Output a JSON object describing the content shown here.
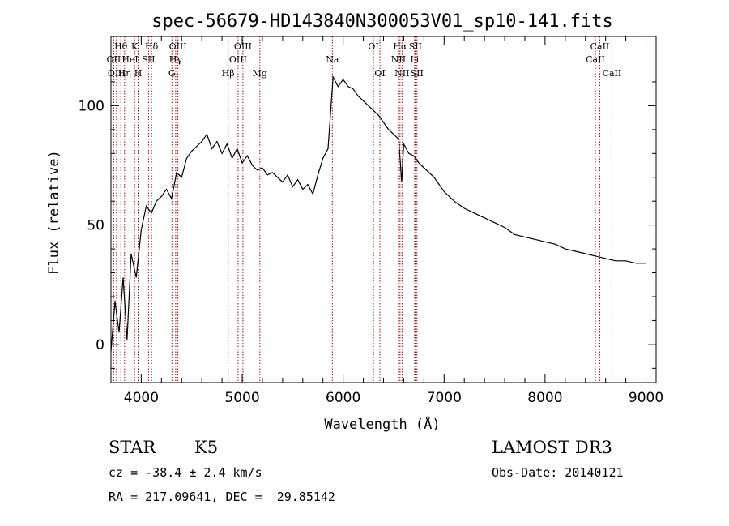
{
  "chart_data": {
    "type": "line",
    "title": "spec-56679-HD143840N300053V01_sp10-141.fits",
    "xlabel": "Wavelength (Å)",
    "ylabel": "Flux (relative)",
    "xlim": [
      3700,
      9100
    ],
    "ylim": [
      -16,
      129
    ],
    "xticks": [
      4000,
      5000,
      6000,
      7000,
      8000,
      9000
    ],
    "yticks": [
      0,
      50,
      100
    ],
    "grid": false,
    "line_color": "#000000",
    "marker_color": "#b00000",
    "series": [
      {
        "x": [
          3700,
          3740,
          3780,
          3820,
          3860,
          3900,
          3950,
          4000,
          4050,
          4100,
          4150,
          4200,
          4250,
          4300,
          4350,
          4400,
          4450,
          4500,
          4550,
          4600,
          4650,
          4700,
          4750,
          4800,
          4850,
          4900,
          4950,
          5000,
          5050,
          5100,
          5150,
          5200,
          5250,
          5300,
          5350,
          5400,
          5450,
          5500,
          5550,
          5600,
          5650,
          5700,
          5750,
          5800,
          5850,
          5900,
          5950,
          6000,
          6050,
          6100,
          6150,
          6200,
          6250,
          6300,
          6350,
          6400,
          6450,
          6500,
          6550,
          6580,
          6600,
          6650,
          6700,
          6750,
          6800,
          6900,
          7000,
          7100,
          7200,
          7300,
          7400,
          7500,
          7600,
          7700,
          7800,
          7900,
          8000,
          8100,
          8200,
          8300,
          8400,
          8500,
          8600,
          8700,
          8800,
          8900,
          9000
        ],
        "y": [
          -3,
          18,
          5,
          28,
          2,
          38,
          28,
          48,
          58,
          55,
          60,
          62,
          65,
          61,
          72,
          70,
          78,
          81,
          83,
          85,
          88,
          82,
          85,
          80,
          84,
          78,
          82,
          76,
          79,
          75,
          73,
          74,
          71,
          72,
          70,
          68,
          71,
          66,
          69,
          65,
          67,
          63,
          71,
          78,
          82,
          112,
          108,
          111,
          108,
          107,
          104,
          102,
          100,
          98,
          96,
          93,
          90,
          88,
          86,
          68,
          84,
          80,
          79,
          76,
          74,
          70,
          64,
          60,
          57,
          55,
          53,
          51,
          49,
          46,
          45,
          44,
          43,
          42,
          40,
          39,
          38,
          37,
          36,
          35,
          35,
          34,
          34
        ]
      }
    ],
    "spectral_lines": [
      {
        "label": "Hθ",
        "x": 3798,
        "row": 1
      },
      {
        "label": "OII",
        "x": 3727,
        "row": 2
      },
      {
        "label": "OIII",
        "x": 3755,
        "row": 3
      },
      {
        "label": "K",
        "x": 3934,
        "row": 1
      },
      {
        "label": "HeI",
        "x": 3889,
        "row": 2
      },
      {
        "label": "Hη",
        "x": 3835,
        "row": 3
      },
      {
        "label": "Hδ",
        "x": 4102,
        "row": 1
      },
      {
        "label": "SII",
        "x": 4072,
        "row": 2
      },
      {
        "label": "H",
        "x": 3969,
        "row": 3
      },
      {
        "label": "OIII",
        "x": 4363,
        "row": 1
      },
      {
        "label": "Hγ",
        "x": 4341,
        "row": 2
      },
      {
        "label": "G",
        "x": 4304,
        "row": 3
      },
      {
        "label": "OIII",
        "x": 5007,
        "row": 1
      },
      {
        "label": "OIII",
        "x": 4959,
        "row": 2
      },
      {
        "label": "Hβ",
        "x": 4861,
        "row": 3
      },
      {
        "label": "Mg",
        "x": 5175,
        "row": 3
      },
      {
        "label": "Na",
        "x": 5893,
        "row": 2
      },
      {
        "label": "OI",
        "x": 6300,
        "row": 1
      },
      {
        "label": "OI",
        "x": 6364,
        "row": 3
      },
      {
        "label": "Hα",
        "x": 6563,
        "row": 1
      },
      {
        "label": "NII",
        "x": 6548,
        "row": 2
      },
      {
        "label": "NII",
        "x": 6583,
        "row": 3
      },
      {
        "label": "SII",
        "x": 6716,
        "row": 1
      },
      {
        "label": "Li",
        "x": 6708,
        "row": 2
      },
      {
        "label": "SII",
        "x": 6731,
        "row": 3
      },
      {
        "label": "CaII",
        "x": 8542,
        "row": 1
      },
      {
        "label": "CaII",
        "x": 8498,
        "row": 2
      },
      {
        "label": "CaII",
        "x": 8662,
        "row": 3
      }
    ]
  },
  "info": {
    "object_class": "STAR",
    "subclass": "K5",
    "survey": "LAMOST DR3",
    "redshift": "cz = -38.4 ± 2.4 km/s",
    "obs_date": "Obs-Date: 20140121",
    "coords": "RA = 217.09641, DEC =  29.85142"
  }
}
